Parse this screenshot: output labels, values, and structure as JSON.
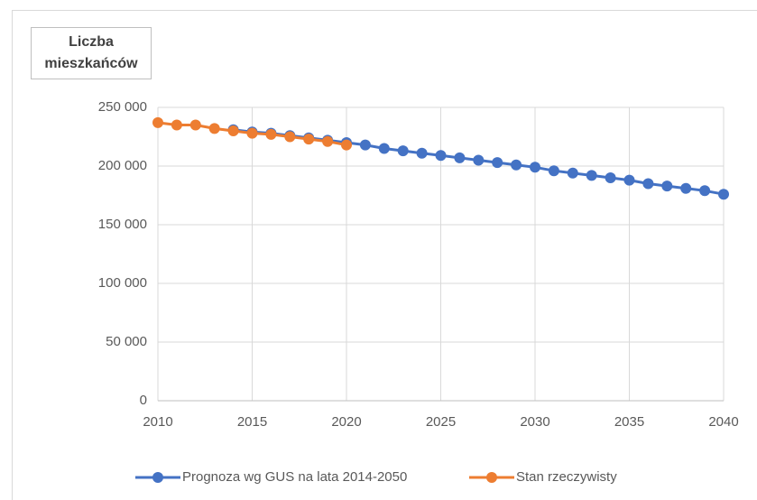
{
  "chart_data": {
    "type": "line",
    "y_label": "Liczba mieszkańców",
    "xlim": [
      2010,
      2040
    ],
    "xticks": [
      2010,
      2015,
      2020,
      2025,
      2030,
      2035,
      2040
    ],
    "ylim": [
      0,
      250000
    ],
    "yticks": [
      0,
      {
        "value": 50000,
        "label": "50 000"
      },
      {
        "value": 100000,
        "label": "100 000"
      },
      {
        "value": 150000,
        "label": "150 000"
      },
      {
        "value": 200000,
        "label": "200 000"
      },
      {
        "value": 250000,
        "label": "250 000"
      }
    ],
    "grid": true,
    "legend": "bottom",
    "series": [
      {
        "name": "Prognoza wg GUS na lata 2014-2050",
        "color": "#4472c4",
        "x": [
          2014,
          2015,
          2016,
          2017,
          2018,
          2019,
          2020,
          2021,
          2022,
          2023,
          2024,
          2025,
          2026,
          2027,
          2028,
          2029,
          2030,
          2031,
          2032,
          2033,
          2034,
          2035,
          2036,
          2037,
          2038,
          2039,
          2040
        ],
        "values": [
          231000,
          229000,
          228000,
          226000,
          224000,
          222000,
          220000,
          218000,
          215000,
          213000,
          211000,
          209000,
          207000,
          205000,
          203000,
          201000,
          199000,
          196000,
          194000,
          192000,
          190000,
          188000,
          185000,
          183000,
          181000,
          179000,
          176000
        ]
      },
      {
        "name": "Stan rzeczywisty",
        "color": "#ed7d31",
        "x": [
          2010,
          2011,
          2012,
          2013,
          2014,
          2015,
          2016,
          2017,
          2018,
          2019,
          2020
        ],
        "values": [
          237000,
          235000,
          235000,
          232000,
          230000,
          228000,
          227000,
          225000,
          223000,
          221000,
          218000
        ]
      }
    ]
  }
}
